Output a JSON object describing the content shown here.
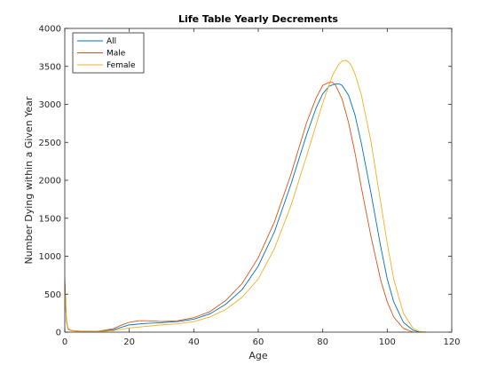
{
  "chart_data": {
    "type": "line",
    "title": "Life Table Yearly Decrements",
    "xlabel": "Age",
    "ylabel": "Number Dying within a Given Year",
    "xlim": [
      0,
      120
    ],
    "ylim": [
      0,
      4000
    ],
    "xticks": [
      0,
      20,
      40,
      60,
      80,
      100,
      120
    ],
    "yticks": [
      0,
      500,
      1000,
      1500,
      2000,
      2500,
      3000,
      3500,
      4000
    ],
    "grid": false,
    "legend_position": "top-left",
    "series": [
      {
        "name": "All",
        "color": "#0072BD",
        "x": [
          0,
          0.5,
          1,
          2,
          5,
          10,
          15,
          18,
          20,
          25,
          30,
          35,
          40,
          45,
          50,
          55,
          60,
          65,
          70,
          75,
          78,
          80,
          82,
          84,
          85,
          86,
          88,
          90,
          92,
          95,
          98,
          100,
          102,
          105,
          108,
          110
        ],
        "y": [
          640,
          150,
          40,
          20,
          10,
          8,
          30,
          70,
          95,
          115,
          125,
          140,
          170,
          240,
          370,
          560,
          870,
          1320,
          1930,
          2600,
          2960,
          3140,
          3240,
          3270,
          3270,
          3250,
          3120,
          2860,
          2480,
          1820,
          1120,
          700,
          400,
          130,
          25,
          0
        ]
      },
      {
        "name": "Male",
        "color": "#D95319",
        "x": [
          0,
          0.5,
          1,
          2,
          5,
          10,
          15,
          18,
          20,
          23,
          25,
          28,
          30,
          35,
          40,
          45,
          50,
          55,
          60,
          65,
          70,
          75,
          78,
          80,
          82,
          83,
          84,
          86,
          88,
          90,
          92,
          95,
          98,
          100,
          102,
          105,
          108
        ],
        "y": [
          700,
          160,
          45,
          22,
          12,
          10,
          45,
          100,
          130,
          150,
          150,
          145,
          140,
          150,
          190,
          270,
          420,
          640,
          980,
          1450,
          2060,
          2760,
          3090,
          3250,
          3290,
          3290,
          3250,
          3070,
          2760,
          2360,
          1900,
          1250,
          680,
          400,
          200,
          50,
          0
        ]
      },
      {
        "name": "Female",
        "color": "#EDB120",
        "x": [
          0,
          0.5,
          1,
          2,
          5,
          10,
          15,
          20,
          25,
          30,
          35,
          40,
          45,
          50,
          55,
          60,
          65,
          70,
          75,
          80,
          83,
          85,
          86,
          87,
          88,
          89,
          90,
          92,
          95,
          98,
          100,
          102,
          105,
          108,
          110,
          112
        ],
        "y": [
          600,
          140,
          35,
          18,
          8,
          6,
          20,
          55,
          75,
          95,
          110,
          140,
          200,
          300,
          460,
          700,
          1100,
          1650,
          2320,
          3020,
          3380,
          3530,
          3570,
          3580,
          3560,
          3500,
          3400,
          3120,
          2500,
          1700,
          1170,
          700,
          250,
          50,
          10,
          0
        ]
      }
    ]
  }
}
